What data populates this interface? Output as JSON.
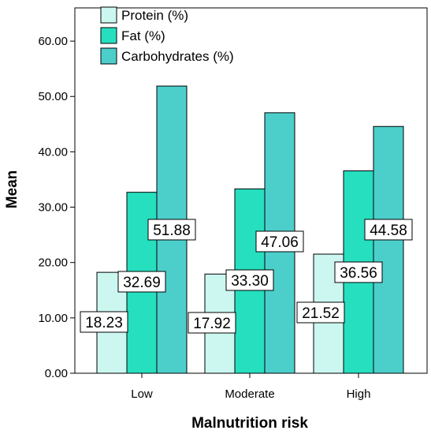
{
  "chart_data": {
    "type": "bar",
    "xlabel": "Malnutrition risk",
    "ylabel": "Mean",
    "categories": [
      "Low",
      "Moderate",
      "High"
    ],
    "ylim": [
      0,
      66
    ],
    "yticks": [
      "0.00",
      "10.00",
      "20.00",
      "30.00",
      "40.00",
      "50.00",
      "60.00"
    ],
    "grid": false,
    "legend_position": "top-left",
    "series": [
      {
        "name": "Protein (%)",
        "color": "#ccf7f1",
        "values": [
          18.23,
          17.92,
          21.52
        ],
        "labels": [
          "18.23",
          "17.92",
          "21.52"
        ]
      },
      {
        "name": "Fat (%)",
        "color": "#26dfbf",
        "values": [
          32.69,
          33.3,
          36.56
        ],
        "labels": [
          "32.69",
          "33.30",
          "36.56"
        ]
      },
      {
        "name": "Carbohydrates (%)",
        "color": "#4ccfcb",
        "values": [
          51.88,
          47.06,
          44.58
        ],
        "labels": [
          "51.88",
          "47.06",
          "44.58"
        ]
      }
    ]
  }
}
